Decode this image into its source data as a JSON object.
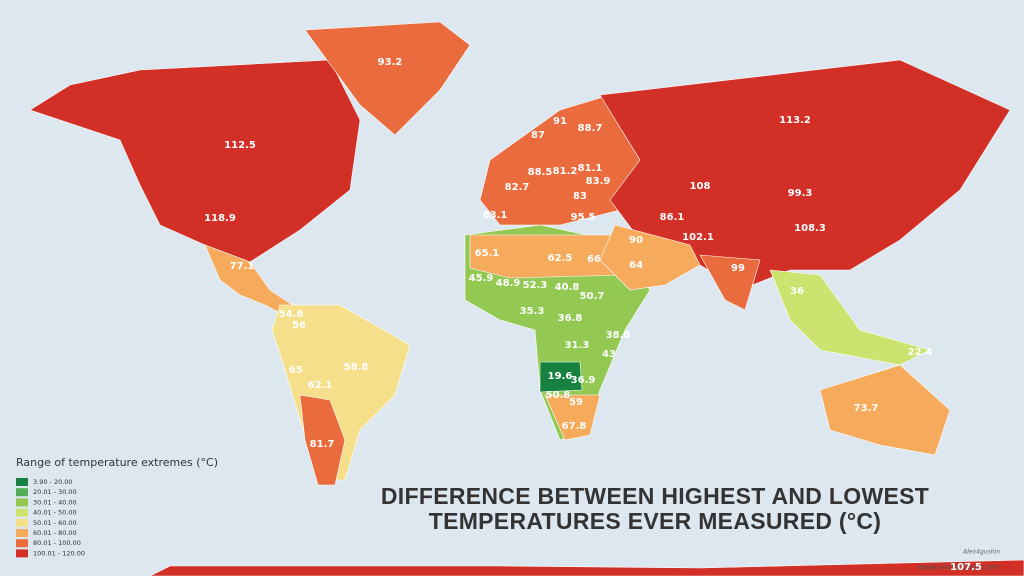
{
  "title_lines": [
    "DIFFERENCE BETWEEN HIGHEST AND LOWEST",
    "TEMPERATURES EVER MEASURED (°C)"
  ],
  "legend": {
    "title": "Range of temperature extremes (°C)",
    "items": [
      {
        "label": "3.90 - 20.00",
        "color": "#17813f"
      },
      {
        "label": "20.01 - 30.00",
        "color": "#52ad58"
      },
      {
        "label": "30.01 - 40.00",
        "color": "#93c952"
      },
      {
        "label": "40.01 - 50.00",
        "color": "#cce36f"
      },
      {
        "label": "50.01 - 60.00",
        "color": "#f6df8a"
      },
      {
        "label": "60.01 - 80.00",
        "color": "#f5aa5c"
      },
      {
        "label": "80.01 - 100.00",
        "color": "#ea6c3e"
      },
      {
        "label": "100.01 - 120.00",
        "color": "#d22f26"
      }
    ]
  },
  "map_labels": [
    "93.2",
    "112.5",
    "118.9",
    "113.2",
    "108",
    "99.3",
    "108.3",
    "102.1",
    "90",
    "99",
    "86.1",
    "95.5",
    "83.9",
    "81.1",
    "81.2",
    "88.5",
    "83",
    "82.7",
    "83.1",
    "91",
    "88.7",
    "87",
    "77.1",
    "65.1",
    "62.5",
    "66",
    "64",
    "45.9",
    "48.9",
    "52.3",
    "40.8",
    "50.7",
    "35.3",
    "36.8",
    "38.8",
    "31.3",
    "43",
    "19.6",
    "36.9",
    "59",
    "50.8",
    "67.8",
    "54.6",
    "56",
    "65",
    "62.1",
    "58.8",
    "81.7",
    "73.7",
    "36",
    "22.4",
    "107.5"
  ],
  "credits": [
    "Alex4gushin",
    "www.vividmaps.com"
  ]
}
